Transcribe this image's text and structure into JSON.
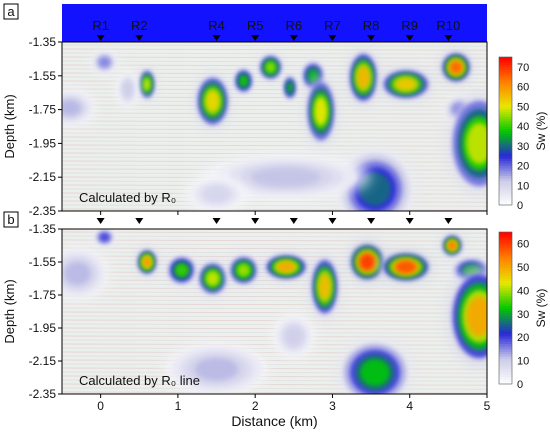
{
  "chart_data": [
    {
      "type": "heatmap",
      "panel_label": "a",
      "annotation": "Calculated by R₀",
      "xlabel": "",
      "ylabel": "Depth (km)",
      "colorbar_label": "Sw (%)",
      "xlim": [
        -0.5,
        5
      ],
      "ylim": [
        -2.35,
        -1.35
      ],
      "x_ticks": [],
      "y_ticks": [
        "-1.35",
        "-1.55",
        "-1.75",
        "-1.95",
        "-2.15",
        "-2.35"
      ],
      "colorbar_range": [
        0,
        75
      ],
      "colorbar_ticks": [
        "0",
        "10",
        "20",
        "30",
        "40",
        "50",
        "60",
        "70"
      ],
      "colorscale": [
        "#ffffff",
        "#cccce8",
        "#2828d8",
        "#00c800",
        "#e8e800",
        "#ff8000",
        "#ff0000"
      ],
      "wells": [
        {
          "name": "R1",
          "x": 0.0
        },
        {
          "name": "R2",
          "x": 0.5
        },
        {
          "name": "R4",
          "x": 1.5
        },
        {
          "name": "R5",
          "x": 2.0
        },
        {
          "name": "R6",
          "x": 2.5
        },
        {
          "name": "R7",
          "x": 3.0
        },
        {
          "name": "R8",
          "x": 3.5
        },
        {
          "name": "R9",
          "x": 4.0
        },
        {
          "name": "R10",
          "x": 4.5
        }
      ],
      "blobs": [
        {
          "x": -0.4,
          "y": -1.74,
          "rx": 0.25,
          "ry": 0.08,
          "v": 14
        },
        {
          "x": 0.05,
          "y": -1.47,
          "rx": 0.12,
          "ry": 0.05,
          "v": 18
        },
        {
          "x": 0.6,
          "y": -1.6,
          "rx": 0.08,
          "ry": 0.07,
          "v": 48
        },
        {
          "x": 0.35,
          "y": -1.63,
          "rx": 0.1,
          "ry": 0.08,
          "v": 12
        },
        {
          "x": 1.45,
          "y": -1.7,
          "rx": 0.17,
          "ry": 0.12,
          "v": 52
        },
        {
          "x": 1.85,
          "y": -1.58,
          "rx": 0.1,
          "ry": 0.06,
          "v": 38
        },
        {
          "x": 2.2,
          "y": -1.5,
          "rx": 0.12,
          "ry": 0.06,
          "v": 45
        },
        {
          "x": 2.45,
          "y": -1.62,
          "rx": 0.07,
          "ry": 0.06,
          "v": 35
        },
        {
          "x": 2.75,
          "y": -1.55,
          "rx": 0.12,
          "ry": 0.07,
          "v": 36
        },
        {
          "x": 2.85,
          "y": -1.76,
          "rx": 0.15,
          "ry": 0.15,
          "v": 50
        },
        {
          "x": 3.4,
          "y": -1.56,
          "rx": 0.15,
          "ry": 0.12,
          "v": 56
        },
        {
          "x": 3.95,
          "y": -1.6,
          "rx": 0.25,
          "ry": 0.07,
          "v": 54
        },
        {
          "x": 4.6,
          "y": -1.5,
          "rx": 0.15,
          "ry": 0.07,
          "v": 65
        },
        {
          "x": 4.65,
          "y": -1.75,
          "rx": 0.15,
          "ry": 0.06,
          "v": 20
        },
        {
          "x": 4.9,
          "y": -1.95,
          "rx": 0.3,
          "ry": 0.22,
          "v": 48
        },
        {
          "x": 3.55,
          "y": -2.22,
          "rx": 0.38,
          "ry": 0.18,
          "v": 30
        },
        {
          "x": 2.4,
          "y": -2.15,
          "rx": 0.8,
          "ry": 0.1,
          "v": 13
        },
        {
          "x": 1.5,
          "y": -2.25,
          "rx": 0.3,
          "ry": 0.08,
          "v": 10
        }
      ]
    },
    {
      "type": "heatmap",
      "panel_label": "b",
      "annotation": "Calculated by R₀ line",
      "xlabel": "Distance (km)",
      "ylabel": "Depth (km)",
      "colorbar_label": "Sw (%)",
      "xlim": [
        -0.5,
        5
      ],
      "ylim": [
        -2.35,
        -1.35
      ],
      "x_ticks": [
        "0",
        "1",
        "2",
        "3",
        "4",
        "5"
      ],
      "y_ticks": [
        "-1.35",
        "-1.55",
        "-1.75",
        "-1.95",
        "-2.15",
        "-2.35"
      ],
      "colorbar_range": [
        0,
        65
      ],
      "colorbar_ticks": [
        "0",
        "10",
        "20",
        "30",
        "40",
        "50",
        "60"
      ],
      "colorscale": [
        "#ffffff",
        "#cccce8",
        "#2828d8",
        "#00c800",
        "#e8e800",
        "#ff8000",
        "#ff0000"
      ],
      "wells": [
        {
          "name": "",
          "x": 0.0
        },
        {
          "name": "",
          "x": 0.5
        },
        {
          "name": "",
          "x": 1.5
        },
        {
          "name": "",
          "x": 2.0
        },
        {
          "name": "",
          "x": 2.5
        },
        {
          "name": "",
          "x": 3.0
        },
        {
          "name": "",
          "x": 3.5
        },
        {
          "name": "",
          "x": 4.0
        },
        {
          "name": "",
          "x": 4.5
        }
      ],
      "blobs": [
        {
          "x": -0.3,
          "y": -1.62,
          "rx": 0.3,
          "ry": 0.12,
          "v": 12
        },
        {
          "x": 0.05,
          "y": -1.4,
          "rx": 0.1,
          "ry": 0.04,
          "v": 20
        },
        {
          "x": 0.6,
          "y": -1.55,
          "rx": 0.1,
          "ry": 0.06,
          "v": 52
        },
        {
          "x": 1.05,
          "y": -1.6,
          "rx": 0.15,
          "ry": 0.07,
          "v": 35
        },
        {
          "x": 1.45,
          "y": -1.65,
          "rx": 0.15,
          "ry": 0.08,
          "v": 42
        },
        {
          "x": 1.85,
          "y": -1.6,
          "rx": 0.15,
          "ry": 0.07,
          "v": 40
        },
        {
          "x": 2.4,
          "y": -1.58,
          "rx": 0.22,
          "ry": 0.06,
          "v": 50
        },
        {
          "x": 2.9,
          "y": -1.7,
          "rx": 0.14,
          "ry": 0.14,
          "v": 48
        },
        {
          "x": 3.45,
          "y": -1.55,
          "rx": 0.18,
          "ry": 0.09,
          "v": 60
        },
        {
          "x": 3.95,
          "y": -1.58,
          "rx": 0.25,
          "ry": 0.07,
          "v": 58
        },
        {
          "x": 4.55,
          "y": -1.45,
          "rx": 0.1,
          "ry": 0.05,
          "v": 55
        },
        {
          "x": 4.8,
          "y": -1.6,
          "rx": 0.2,
          "ry": 0.06,
          "v": 30
        },
        {
          "x": 4.9,
          "y": -1.88,
          "rx": 0.3,
          "ry": 0.22,
          "v": 50
        },
        {
          "x": 3.55,
          "y": -2.22,
          "rx": 0.35,
          "ry": 0.15,
          "v": 32
        },
        {
          "x": 1.5,
          "y": -2.2,
          "rx": 0.5,
          "ry": 0.12,
          "v": 12
        },
        {
          "x": 2.5,
          "y": -2.0,
          "rx": 0.2,
          "ry": 0.1,
          "v": 10
        }
      ]
    }
  ]
}
